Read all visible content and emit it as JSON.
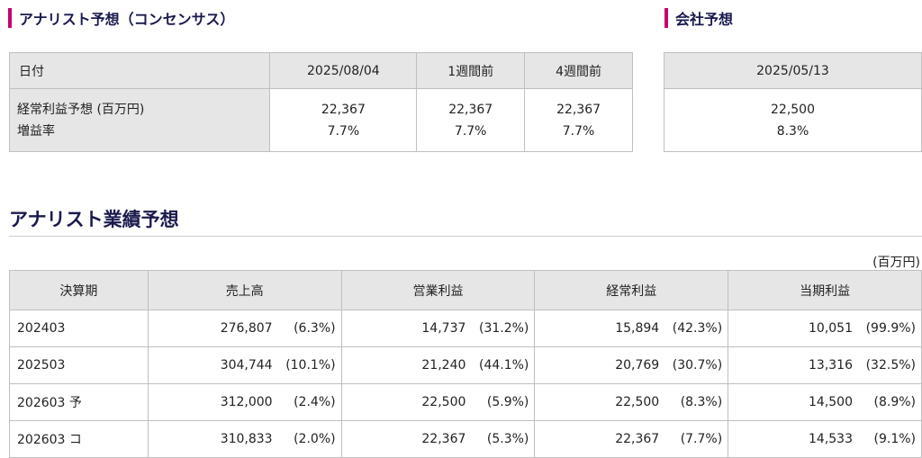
{
  "consensus": {
    "heading": "アナリスト予想（コンセンサス）",
    "columns": [
      "日付",
      "2025/08/04",
      "1週間前",
      "4週間前"
    ],
    "row_labels": [
      "経常利益予想 (百万円)",
      "増益率"
    ],
    "values": [
      [
        "22,367",
        "7.7%"
      ],
      [
        "22,367",
        "7.7%"
      ],
      [
        "22,367",
        "7.7%"
      ]
    ]
  },
  "company": {
    "heading": "会社予想",
    "date": "2025/05/13",
    "values": [
      "22,500",
      "8.3%"
    ]
  },
  "forecast": {
    "title": "アナリスト業績予想",
    "unit": "(百万円)",
    "columns": [
      "決算期",
      "売上高",
      "営業利益",
      "経常利益",
      "当期利益"
    ],
    "rows": [
      {
        "period": "202403",
        "cells": [
          [
            "276,807",
            "(6.3%)"
          ],
          [
            "14,737",
            "(31.2%)"
          ],
          [
            "15,894",
            "(42.3%)"
          ],
          [
            "10,051",
            "(99.9%)"
          ]
        ]
      },
      {
        "period": "202503",
        "cells": [
          [
            "304,744",
            "(10.1%)"
          ],
          [
            "21,240",
            "(44.1%)"
          ],
          [
            "20,769",
            "(30.7%)"
          ],
          [
            "13,316",
            "(32.5%)"
          ]
        ]
      },
      {
        "period": "202603 予",
        "cells": [
          [
            "312,000",
            "(2.4%)"
          ],
          [
            "22,500",
            "(5.9%)"
          ],
          [
            "22,500",
            "(8.3%)"
          ],
          [
            "14,500",
            "(8.9%)"
          ]
        ]
      },
      {
        "period": "202603 コ",
        "cells": [
          [
            "310,833",
            "(2.0%)"
          ],
          [
            "22,367",
            "(5.3%)"
          ],
          [
            "22,367",
            "(7.7%)"
          ],
          [
            "14,533",
            "(9.1%)"
          ]
        ]
      }
    ]
  }
}
